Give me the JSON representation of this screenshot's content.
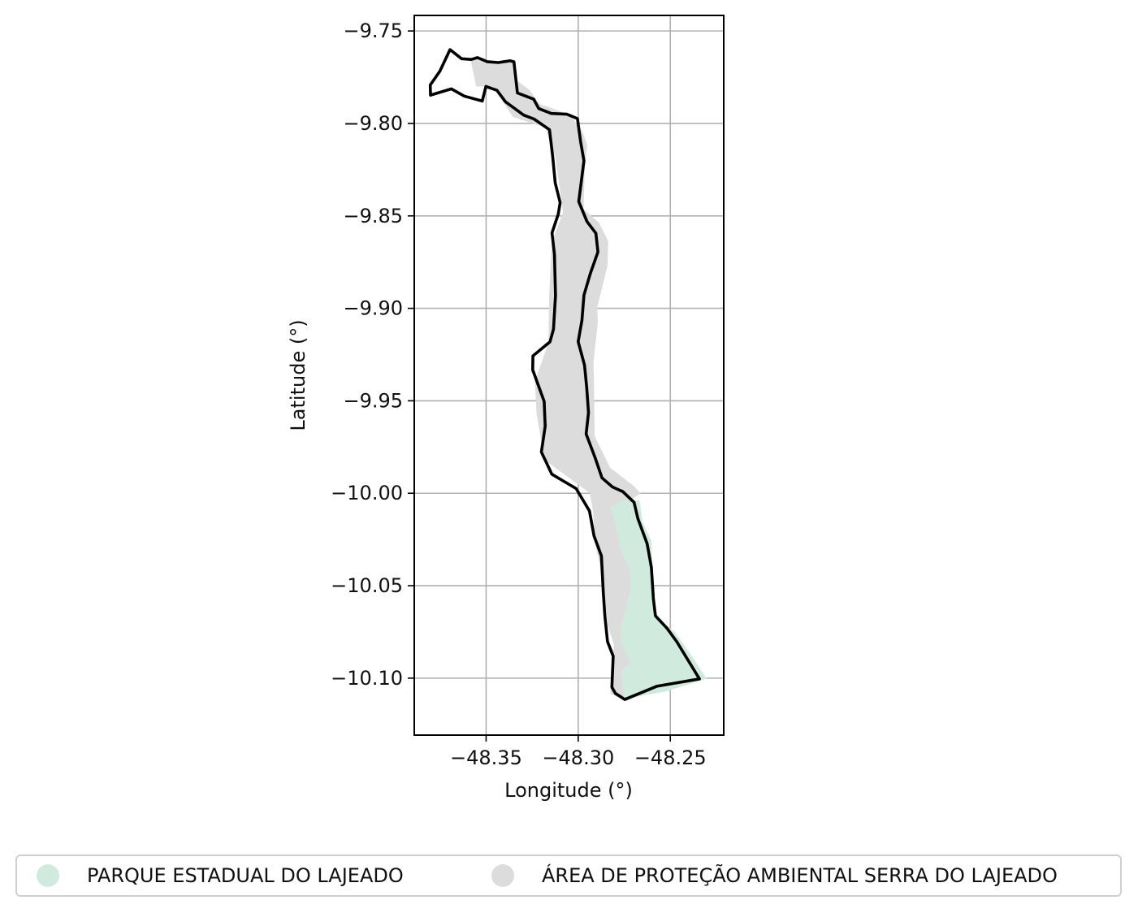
{
  "map": {
    "xlabel": "Longitude (°)",
    "ylabel": "Latitude (°)",
    "xlim": [
      -48.389,
      -48.221
    ],
    "ylim": [
      -10.1308,
      -9.7416
    ],
    "x_ticks": [
      -48.35,
      -48.3,
      -48.25
    ],
    "x_tick_labels": [
      "−48.35",
      "−48.30",
      "−48.25"
    ],
    "y_ticks": [
      -9.75,
      -9.8,
      -9.85,
      -9.9,
      -9.95,
      -10.0,
      -10.05,
      -10.1
    ],
    "y_tick_labels": [
      "−9.75",
      "−9.80",
      "−9.85",
      "−9.90",
      "−9.95",
      "−10.00",
      "−10.05",
      "−10.10"
    ],
    "grid": true,
    "legend_position": "bottom-center",
    "colors": {
      "apa_fill": "#dcdcdc",
      "parque_fill": "#d0ebdd",
      "outline": "#000000",
      "grid": "#b0b0b0"
    },
    "regions": [
      {
        "name": "ÁREA DE PROTEÇÃO AMBIENTAL SERRA DO LAJEADO",
        "color": "#dcdcdc",
        "coords": [
          [
            -48.3585,
            -9.7652
          ],
          [
            -48.3522,
            -9.7644
          ],
          [
            -48.3457,
            -9.7673
          ],
          [
            -48.3373,
            -9.7661
          ],
          [
            -48.3348,
            -9.7657
          ],
          [
            -48.3335,
            -9.7768
          ],
          [
            -48.3267,
            -9.7817
          ],
          [
            -48.3207,
            -9.7896
          ],
          [
            -48.3044,
            -9.7953
          ],
          [
            -48.2976,
            -9.8045
          ],
          [
            -48.2951,
            -9.8117
          ],
          [
            -48.2965,
            -9.8252
          ],
          [
            -48.2971,
            -9.8463
          ],
          [
            -48.2887,
            -9.8537
          ],
          [
            -48.2837,
            -9.8638
          ],
          [
            -48.2841,
            -9.877
          ],
          [
            -48.2897,
            -9.8996
          ],
          [
            -48.2893,
            -9.9074
          ],
          [
            -48.2917,
            -9.9289
          ],
          [
            -48.2913,
            -9.9505
          ],
          [
            -48.2911,
            -9.969
          ],
          [
            -48.2827,
            -9.9862
          ],
          [
            -48.2697,
            -9.9962
          ],
          [
            -48.2662,
            -10.0001
          ],
          [
            -48.2712,
            -10.0033
          ],
          [
            -48.2652,
            -10.0154
          ],
          [
            -48.2641,
            -10.0371
          ],
          [
            -48.2601,
            -10.0634
          ],
          [
            -48.2508,
            -10.0798
          ],
          [
            -48.2332,
            -10.1014
          ],
          [
            -48.2586,
            -10.1043
          ],
          [
            -48.2737,
            -10.1125
          ],
          [
            -48.2826,
            -10.1084
          ],
          [
            -48.2806,
            -10.0818
          ],
          [
            -48.284,
            -10.0714
          ],
          [
            -48.2862,
            -10.0478
          ],
          [
            -48.2909,
            -10.0268
          ],
          [
            -48.292,
            -10.0095
          ],
          [
            -48.2938,
            -9.9999
          ],
          [
            -48.3183,
            -9.9819
          ],
          [
            -48.3226,
            -9.9573
          ],
          [
            -48.3235,
            -9.9395
          ],
          [
            -48.3161,
            -9.9185
          ],
          [
            -48.3158,
            -9.8934
          ],
          [
            -48.3143,
            -9.8642
          ],
          [
            -48.3082,
            -9.8481
          ],
          [
            -48.3125,
            -9.818
          ],
          [
            -48.318,
            -9.8021
          ],
          [
            -48.3354,
            -9.7966
          ],
          [
            -48.3462,
            -9.7803
          ],
          [
            -48.3554,
            -9.78
          ]
        ]
      },
      {
        "name": "PARQUE ESTADUAL DO LAJEADO",
        "color": "#d0ebdd",
        "coords": [
          [
            -48.2666,
            -10.0038
          ],
          [
            -48.2652,
            -10.0154
          ],
          [
            -48.2602,
            -10.026
          ],
          [
            -48.2598,
            -10.0423
          ],
          [
            -48.2589,
            -10.0595
          ],
          [
            -48.2564,
            -10.0683
          ],
          [
            -48.2479,
            -10.0747
          ],
          [
            -48.2395,
            -10.0863
          ],
          [
            -48.2302,
            -10.1003
          ],
          [
            -48.253,
            -10.1073
          ],
          [
            -48.2663,
            -10.1097
          ],
          [
            -48.2748,
            -10.1119
          ],
          [
            -48.2766,
            -10.0956
          ],
          [
            -48.2715,
            -10.0915
          ],
          [
            -48.2774,
            -10.08
          ],
          [
            -48.2767,
            -10.0709
          ],
          [
            -48.2716,
            -10.0526
          ],
          [
            -48.2718,
            -10.0419
          ],
          [
            -48.2771,
            -10.0309
          ],
          [
            -48.2797,
            -10.0178
          ],
          [
            -48.2824,
            -10.0076
          ],
          [
            -48.2757,
            -10.0038
          ]
        ]
      }
    ],
    "outline": [
      [
        -48.3696,
        -9.7601
      ],
      [
        -48.3633,
        -9.765
      ],
      [
        -48.358,
        -9.7654
      ],
      [
        -48.3547,
        -9.7644
      ],
      [
        -48.3495,
        -9.7666
      ],
      [
        -48.3434,
        -9.7671
      ],
      [
        -48.3369,
        -9.7661
      ],
      [
        -48.3349,
        -9.7667
      ],
      [
        -48.333,
        -9.7835
      ],
      [
        -48.3242,
        -9.7869
      ],
      [
        -48.3214,
        -9.792
      ],
      [
        -48.3146,
        -9.7946
      ],
      [
        -48.3062,
        -9.795
      ],
      [
        -48.3004,
        -9.7974
      ],
      [
        -48.2987,
        -9.8099
      ],
      [
        -48.2969,
        -9.8202
      ],
      [
        -48.2997,
        -9.8423
      ],
      [
        -48.2952,
        -9.8531
      ],
      [
        -48.2904,
        -9.8594
      ],
      [
        -48.2893,
        -9.8695
      ],
      [
        -48.2934,
        -9.8811
      ],
      [
        -48.2969,
        -9.8929
      ],
      [
        -48.298,
        -9.9066
      ],
      [
        -48.3,
        -9.918
      ],
      [
        -48.2966,
        -9.9307
      ],
      [
        -48.2954,
        -9.9428
      ],
      [
        -48.2944,
        -9.9564
      ],
      [
        -48.2957,
        -9.9679
      ],
      [
        -48.2909,
        -9.9806
      ],
      [
        -48.2871,
        -9.9917
      ],
      [
        -48.2814,
        -9.9966
      ],
      [
        -48.2758,
        -9.9991
      ],
      [
        -48.2697,
        -10.0049
      ],
      [
        -48.2676,
        -10.0137
      ],
      [
        -48.2626,
        -10.0273
      ],
      [
        -48.2603,
        -10.04
      ],
      [
        -48.2592,
        -10.0571
      ],
      [
        -48.2581,
        -10.0663
      ],
      [
        -48.2518,
        -10.073
      ],
      [
        -48.2465,
        -10.0803
      ],
      [
        -48.2342,
        -10.1004
      ],
      [
        -48.2574,
        -10.1044
      ],
      [
        -48.2747,
        -10.1115
      ],
      [
        -48.2798,
        -10.1082
      ],
      [
        -48.2817,
        -10.1049
      ],
      [
        -48.281,
        -10.0881
      ],
      [
        -48.2841,
        -10.0802
      ],
      [
        -48.2855,
        -10.0665
      ],
      [
        -48.2864,
        -10.0536
      ],
      [
        -48.2874,
        -10.0339
      ],
      [
        -48.2914,
        -10.0231
      ],
      [
        -48.2939,
        -10.0096
      ],
      [
        -48.3011,
        -9.9975
      ],
      [
        -48.3143,
        -9.9897
      ],
      [
        -48.32,
        -9.9777
      ],
      [
        -48.3179,
        -9.9637
      ],
      [
        -48.3185,
        -9.9503
      ],
      [
        -48.3247,
        -9.9332
      ],
      [
        -48.3246,
        -9.9257
      ],
      [
        -48.3153,
        -9.9181
      ],
      [
        -48.3134,
        -9.9113
      ],
      [
        -48.3123,
        -9.8931
      ],
      [
        -48.3129,
        -9.8709
      ],
      [
        -48.3142,
        -9.8592
      ],
      [
        -48.3108,
        -9.849
      ],
      [
        -48.3098,
        -9.8428
      ],
      [
        -48.3125,
        -9.8321
      ],
      [
        -48.3138,
        -9.8182
      ],
      [
        -48.3156,
        -9.8034
      ],
      [
        -48.324,
        -9.7976
      ],
      [
        -48.3296,
        -9.7955
      ],
      [
        -48.3395,
        -9.7883
      ],
      [
        -48.3441,
        -9.7821
      ],
      [
        -48.3501,
        -9.78
      ],
      [
        -48.3521,
        -9.7879
      ],
      [
        -48.3619,
        -9.7852
      ],
      [
        -48.3688,
        -9.7813
      ],
      [
        -48.3802,
        -9.7847
      ],
      [
        -48.3803,
        -9.7792
      ],
      [
        -48.3751,
        -9.7718
      ]
    ]
  },
  "legend": {
    "items": [
      {
        "label": "PARQUE ESTADUAL DO LAJEADO",
        "color": "#d0ebdd"
      },
      {
        "label": "ÁREA DE PROTEÇÃO AMBIENTAL SERRA DO LAJEADO",
        "color": "#dcdcdc"
      }
    ]
  }
}
